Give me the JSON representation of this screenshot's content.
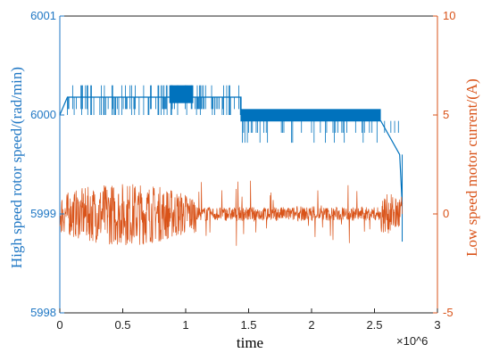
{
  "chart_data": {
    "type": "line",
    "title": "",
    "xlabel": "time",
    "x_exponent_label": "×10^6",
    "xlim": [
      0,
      3
    ],
    "x_ticks": [
      "0",
      "0.5",
      "1",
      "1.5",
      "2",
      "2.5",
      "3"
    ],
    "left_axis": {
      "label": "High speed rotor speed/(rad/min)",
      "ylim": [
        5998,
        6001
      ],
      "ticks": [
        "5998",
        "5999",
        "6000",
        "6001"
      ],
      "color": "#1f77c4"
    },
    "right_axis": {
      "label": "Low speed motor current/(A)",
      "ylim": [
        -5,
        10
      ],
      "ticks": [
        "-5",
        "0",
        "5",
        "10"
      ],
      "color": "#d95319"
    },
    "series": [
      {
        "axis": "left",
        "color": "#0072bd",
        "x": [
          0,
          0.06,
          0.06,
          0.25,
          1.08,
          1.08,
          1.44,
          1.44,
          2.55,
          2.55,
          2.7,
          2.72
        ],
        "y": [
          6000,
          6000.18,
          6000.18,
          6000.18,
          6000.18,
          6000.18,
          6000.18,
          5999.94,
          5999.94,
          5999.94,
          5999.6,
          5999.1
        ]
      },
      {
        "axis": "right",
        "color": "#d95319",
        "x": [
          0,
          0.1,
          0.2,
          0.3,
          0.4,
          0.5,
          0.6,
          0.7,
          0.8,
          0.9,
          1.0,
          1.08,
          1.2,
          1.4,
          1.6,
          1.8,
          2.0,
          2.2,
          2.4,
          2.55,
          2.65,
          2.72
        ],
        "y": [
          0,
          0.2,
          -0.1,
          0.3,
          -0.4,
          0.1,
          0.0,
          -0.2,
          0.3,
          0.1,
          -0.1,
          0.0,
          0.0,
          0.1,
          0.0,
          -0.1,
          0.0,
          0.0,
          0.0,
          0.1,
          -0.2,
          0.0
        ]
      }
    ]
  }
}
